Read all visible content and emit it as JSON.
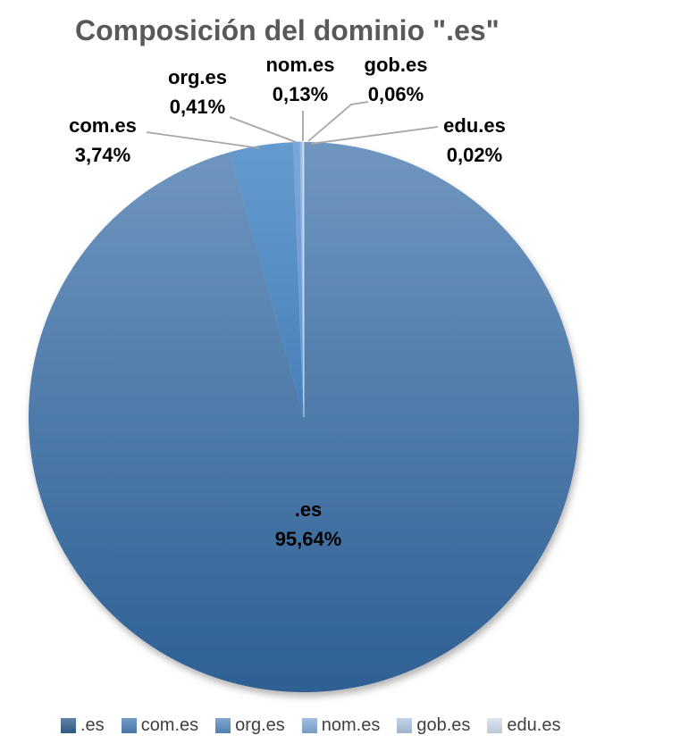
{
  "chart_data": {
    "type": "pie",
    "title": "Composición del dominio \".es\"",
    "title_color": "#595959",
    "label_color": "#000000",
    "leader_line_color": "#A6A6A6",
    "legend_text_color": "#404040",
    "legend_position": "bottom",
    "start_angle_deg": 0,
    "direction": "clockwise",
    "slices": [
      {
        "label": ".es",
        "value": 95.64,
        "display": "95,64%",
        "fill_top": "#6F96C0",
        "fill_bottom": "#2E6094",
        "legend_color": "#35618F",
        "label_placement": "inside"
      },
      {
        "label": "com.es",
        "value": 3.74,
        "display": "3,74%",
        "fill_top": "#639ACF",
        "fill_bottom": "#4A80BA",
        "legend_color": "#4B80B8",
        "label_placement": "outside"
      },
      {
        "label": "org.es",
        "value": 0.41,
        "display": "0,41%",
        "fill_top": "#79A7DB",
        "fill_bottom": "#6295CE",
        "legend_color": "#5B8EC6",
        "label_placement": "outside"
      },
      {
        "label": "nom.es",
        "value": 0.13,
        "display": "0,13%",
        "fill_top": "#9ABCE5",
        "fill_bottom": "#8AB0DE",
        "legend_color": "#86ACD8",
        "label_placement": "outside"
      },
      {
        "label": "gob.es",
        "value": 0.06,
        "display": "0,06%",
        "fill_top": "#BDD1EA",
        "fill_bottom": "#B3CAE6",
        "legend_color": "#B0C7E1",
        "label_placement": "outside"
      },
      {
        "label": "edu.es",
        "value": 0.02,
        "display": "0,02%",
        "fill_top": "#DDE7F5",
        "fill_bottom": "#D5E1F1",
        "legend_color": "#D3DEEF",
        "label_placement": "outside"
      }
    ]
  }
}
